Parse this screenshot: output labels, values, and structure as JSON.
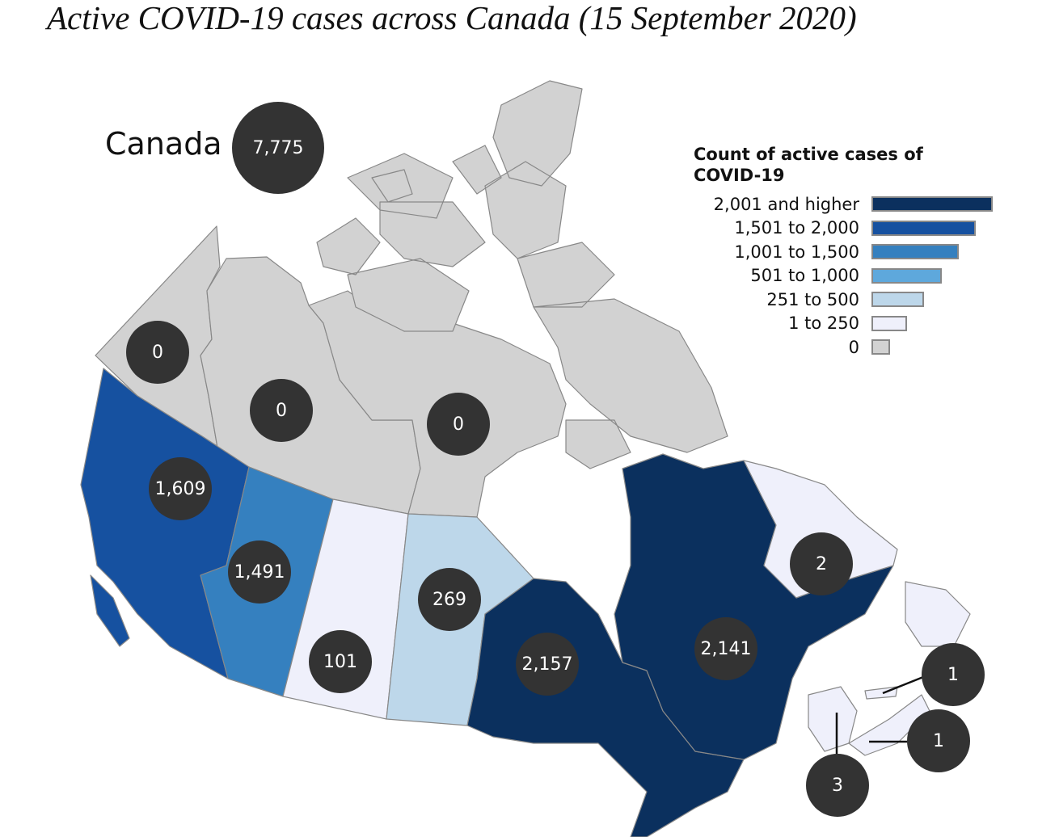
{
  "title": "Active COVID-19 cases across Canada (15 September 2020)",
  "national": {
    "label": "Canada",
    "value": "7,775"
  },
  "legend": {
    "title_line1": "Count of active cases of",
    "title_line2": "COVID-19",
    "classes": [
      {
        "label": "2,001 and higher",
        "color": "#0b305e"
      },
      {
        "label": "1,501 to 2,000",
        "color": "#1651a0"
      },
      {
        "label": "1,001 to 1,500",
        "color": "#3580bf"
      },
      {
        "label": "501 to 1,000",
        "color": "#5ea8dc"
      },
      {
        "label": "251 to 500",
        "color": "#bdd7ea"
      },
      {
        "label": "1 to 250",
        "color": "#eff0fb"
      },
      {
        "label": "0",
        "color": "#d2d2d2"
      }
    ]
  },
  "regions": [
    {
      "id": "yukon",
      "value": "0"
    },
    {
      "id": "northwest-territories",
      "value": "0"
    },
    {
      "id": "nunavut",
      "value": "0"
    },
    {
      "id": "british-columbia",
      "value": "1,609"
    },
    {
      "id": "alberta",
      "value": "1,491"
    },
    {
      "id": "saskatchewan",
      "value": "101"
    },
    {
      "id": "manitoba",
      "value": "269"
    },
    {
      "id": "ontario",
      "value": "2,157"
    },
    {
      "id": "quebec",
      "value": "2,141"
    },
    {
      "id": "newfoundland-and-labrador",
      "value": "2"
    },
    {
      "id": "prince-edward-island",
      "value": "1"
    },
    {
      "id": "nova-scotia",
      "value": "1"
    },
    {
      "id": "new-brunswick",
      "value": "3"
    }
  ]
}
